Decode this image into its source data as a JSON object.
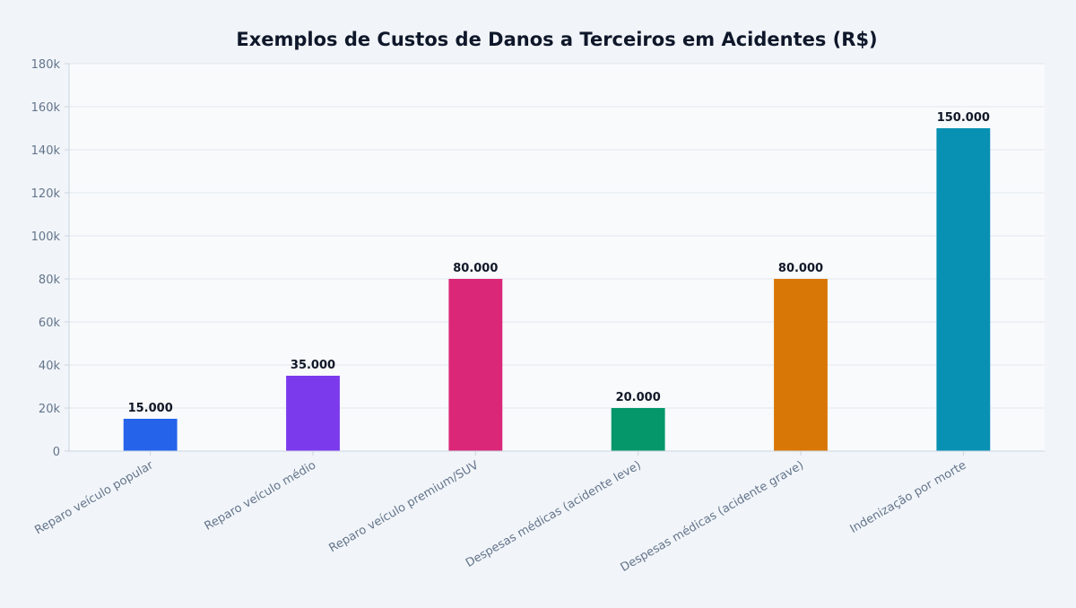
{
  "chart_data": {
    "type": "bar",
    "title": "Exemplos de Custos de Danos a Terceiros em Acidentes (R$)",
    "xlabel": "",
    "ylabel": "",
    "categories": [
      "Reparo veículo popular",
      "Reparo veículo médio",
      "Reparo veículo premium/SUV",
      "Despesas médicas (acidente leve)",
      "Despesas médicas (acidente grave)",
      "Indenização por morte"
    ],
    "values": [
      15000,
      35000,
      80000,
      20000,
      80000,
      150000
    ],
    "data_labels": [
      "15.000",
      "35.000",
      "80.000",
      "20.000",
      "80.000",
      "150.000"
    ],
    "colors": [
      "#2563eb",
      "#7c3aed",
      "#db2777",
      "#059669",
      "#d97706",
      "#0891b2"
    ],
    "ylim": [
      0,
      180000
    ],
    "yticks": [
      0,
      20000,
      40000,
      60000,
      80000,
      100000,
      120000,
      140000,
      160000,
      180000
    ],
    "ytick_labels": [
      "0",
      "20k",
      "40k",
      "60k",
      "80k",
      "100k",
      "120k",
      "140k",
      "160k",
      "180k"
    ],
    "grid": true,
    "legend": "none"
  }
}
